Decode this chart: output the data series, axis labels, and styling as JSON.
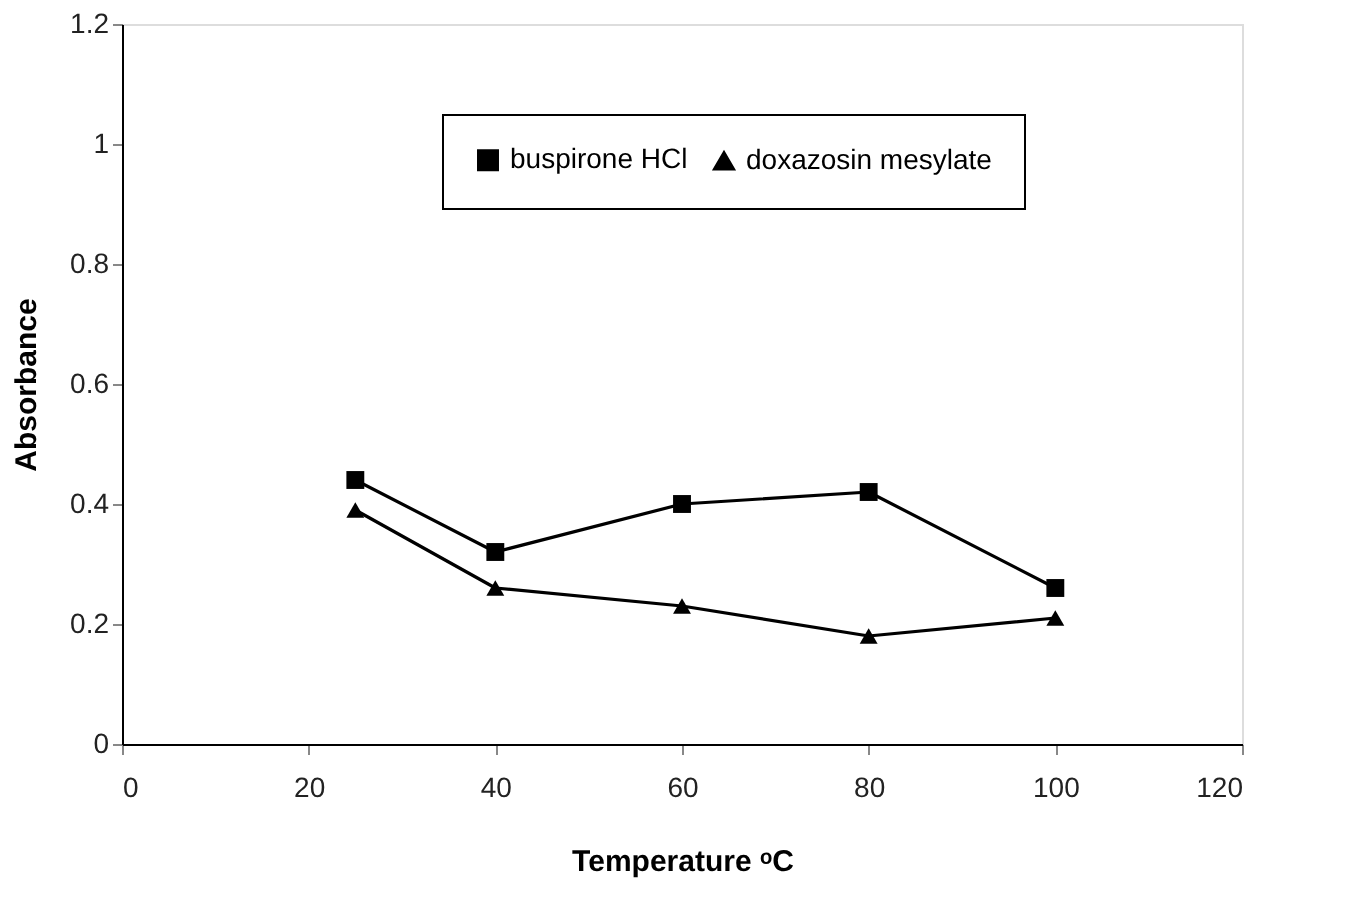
{
  "chart_data": {
    "type": "line",
    "xlabel": "Temperature ᵒC",
    "ylabel": "Absorbance",
    "x": [
      25,
      40,
      60,
      80,
      100
    ],
    "series": [
      {
        "name": "buspirone HCl",
        "color": "#000000",
        "marker": "square",
        "values": [
          0.44,
          0.32,
          0.4,
          0.42,
          0.26
        ]
      },
      {
        "name": "doxazosin mesylate",
        "color": "#000000",
        "marker": "triangle",
        "values": [
          0.39,
          0.26,
          0.23,
          0.18,
          0.21
        ]
      }
    ],
    "xlim": [
      0,
      120
    ],
    "xticks": [
      0,
      20,
      40,
      60,
      80,
      100,
      120
    ],
    "ylim": [
      0,
      1.2
    ],
    "yticks": [
      0,
      0.2,
      0.4,
      0.6,
      0.8,
      1,
      1.2
    ],
    "grid": false,
    "legend": "top",
    "line_style": "solid"
  }
}
